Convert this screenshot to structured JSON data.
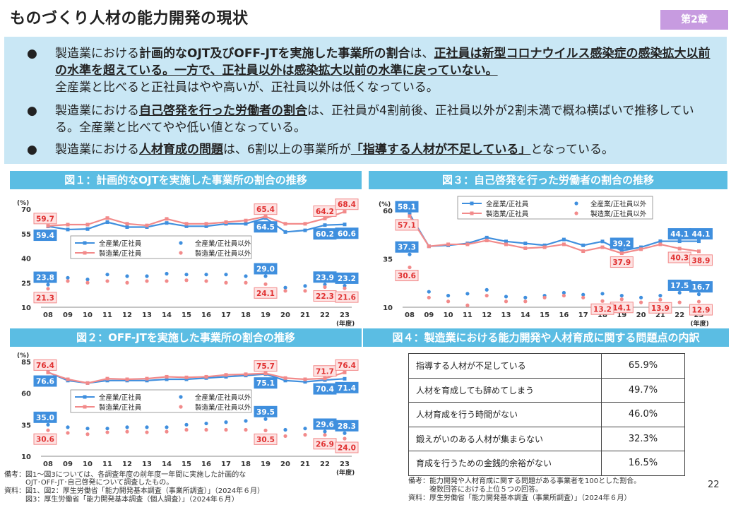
{
  "header": {
    "title": "ものづくり人材の能力開発の現状",
    "chapter": "第2章"
  },
  "summary": {
    "b1": {
      "p1": "製造業における",
      "p2": "計画的なOJT及びOFF-JTを実施した事業所の割合",
      "p3": "は、",
      "p4": "正社員は新型コロナウイルス感染症の感染拡大以前の水準を超えている。一方で、正社員以外は感染拡大以前の水準に戻っていない。",
      "p5": "全産業と比べると正社員はやや高いが、正社員以外は低くなっている。"
    },
    "b2": {
      "p1": "製造業における",
      "p2": "自己啓発を行った労働者の割合",
      "p3": "は、正社員が4割前後、正社員以外が2割未満で概ね横ばいで推移している。全産業と比べてやや低い値となっている。"
    },
    "b3": {
      "p1": "製造業における",
      "p2": "人材育成の問題",
      "p3": "は、6割以上の事業所が",
      "p4": "「指導する人材が不足している」",
      "p5": "となっている。"
    },
    "bullet": "●"
  },
  "panels": {
    "fig1": "図１：計画的なOJTを実施した事業所の割合の推移",
    "fig2": "図２：OFF-JTを実施した事業所の割合の推移",
    "fig3": "図３：自己啓発を行った労働者の割合の推移",
    "fig4": "図４：製造業における能力開発や人材育成に関する問題点の内訳"
  },
  "legend": {
    "all_regular": "全産業/正社員",
    "all_nonregular": "全産業/正社員以外",
    "mfg_regular": "製造業/正社員",
    "mfg_nonregular": "製造業/正社員以外"
  },
  "colors": {
    "blue": "#3f8fde",
    "red": "#f28a8a",
    "panel": "#5bbde3",
    "summary_bg": "#c9e7f5",
    "chapter": "#c79be0"
  },
  "chart_data": [
    {
      "id": "fig1",
      "type": "line",
      "categories": [
        "08",
        "09",
        "10",
        "11",
        "12",
        "13",
        "14",
        "15",
        "16",
        "17",
        "18",
        "19",
        "20",
        "21",
        "22",
        "23"
      ],
      "yunit": "(%)",
      "xunit": "(年度)",
      "yticks": [
        10,
        25,
        40,
        55,
        70
      ],
      "ylim": [
        10,
        70
      ],
      "series": [
        {
          "name": "全産業/正社員",
          "values": [
            59.4,
            57.5,
            57.8,
            62,
            59,
            59,
            61.5,
            59.5,
            59.5,
            61,
            61,
            64.5,
            56,
            57,
            60.2,
            60.6
          ]
        },
        {
          "name": "製造業/正社員",
          "values": [
            59.7,
            60.5,
            60.5,
            64.5,
            61,
            60,
            64,
            61,
            61,
            62,
            63,
            65.4,
            61,
            61,
            64.2,
            68.4
          ]
        },
        {
          "name": "全産業/正社員以外",
          "values": [
            23.8,
            28,
            27,
            30,
            29,
            29,
            30.5,
            30,
            30,
            30,
            29,
            29.0,
            22,
            23,
            23.9,
            23.2
          ]
        },
        {
          "name": "製造業/正社員以外",
          "values": [
            21.3,
            26,
            25,
            26,
            25,
            26,
            26,
            26.5,
            26,
            25,
            25,
            24.1,
            20,
            20,
            22.3,
            21.6
          ]
        }
      ],
      "labels": [
        {
          "series": 0,
          "index": 0,
          "text": "59.4"
        },
        {
          "series": 1,
          "index": 0,
          "text": "59.7"
        },
        {
          "series": 2,
          "index": 0,
          "text": "23.8"
        },
        {
          "series": 3,
          "index": 0,
          "text": "21.3"
        },
        {
          "series": 1,
          "index": 11,
          "text": "65.4"
        },
        {
          "series": 0,
          "index": 11,
          "text": "64.5"
        },
        {
          "series": 2,
          "index": 11,
          "text": "29.0"
        },
        {
          "series": 3,
          "index": 11,
          "text": "24.1"
        },
        {
          "series": 1,
          "index": 14,
          "text": "64.2"
        },
        {
          "series": 0,
          "index": 14,
          "text": "60.2"
        },
        {
          "series": 2,
          "index": 14,
          "text": "23.9"
        },
        {
          "series": 3,
          "index": 14,
          "text": "22.3"
        },
        {
          "series": 1,
          "index": 15,
          "text": "68.4"
        },
        {
          "series": 0,
          "index": 15,
          "text": "60.6"
        },
        {
          "series": 2,
          "index": 15,
          "text": "23.2"
        },
        {
          "series": 3,
          "index": 15,
          "text": "21.6"
        }
      ]
    },
    {
      "id": "fig2",
      "type": "line",
      "categories": [
        "08",
        "09",
        "10",
        "11",
        "12",
        "13",
        "14",
        "15",
        "16",
        "17",
        "18",
        "19",
        "20",
        "21",
        "22",
        "23"
      ],
      "yunit": "(%)",
      "xunit": "(年度)",
      "yticks": [
        10,
        35,
        60,
        85
      ],
      "ylim": [
        10,
        85
      ],
      "series": [
        {
          "name": "全産業/正社員",
          "values": [
            76.6,
            70,
            68,
            70,
            70,
            70,
            71,
            71,
            72,
            73,
            74,
            75.1,
            70,
            69,
            70.4,
            71.4
          ]
        },
        {
          "name": "製造業/正社員",
          "values": [
            76.4,
            71,
            68,
            71.5,
            71,
            71.5,
            73,
            72.5,
            73,
            74.5,
            75,
            75.7,
            72,
            71,
            71.7,
            76.4
          ]
        },
        {
          "name": "全産業/正社員以外",
          "values": [
            35.0,
            33,
            32,
            32,
            33,
            33,
            33,
            35,
            36,
            37,
            38,
            39.5,
            31,
            32,
            29.6,
            28.3
          ]
        },
        {
          "name": "製造業/正社員以外",
          "values": [
            30.6,
            28.5,
            27.5,
            29,
            29.5,
            29,
            29.5,
            31,
            31,
            31,
            31,
            30.5,
            26,
            27,
            26.9,
            24.0
          ]
        }
      ],
      "labels": [
        {
          "series": 1,
          "index": 0,
          "text": "76.4"
        },
        {
          "series": 0,
          "index": 0,
          "text": "76.6"
        },
        {
          "series": 2,
          "index": 0,
          "text": "35.0"
        },
        {
          "series": 3,
          "index": 0,
          "text": "30.6"
        },
        {
          "series": 1,
          "index": 11,
          "text": "75.7"
        },
        {
          "series": 0,
          "index": 11,
          "text": "75.1"
        },
        {
          "series": 2,
          "index": 11,
          "text": "39.5"
        },
        {
          "series": 3,
          "index": 11,
          "text": "30.5"
        },
        {
          "series": 1,
          "index": 14,
          "text": "71.7"
        },
        {
          "series": 0,
          "index": 14,
          "text": "70.4"
        },
        {
          "series": 2,
          "index": 14,
          "text": "29.6"
        },
        {
          "series": 3,
          "index": 14,
          "text": "26.9"
        },
        {
          "series": 1,
          "index": 15,
          "text": "76.4"
        },
        {
          "series": 0,
          "index": 15,
          "text": "71.4"
        },
        {
          "series": 2,
          "index": 15,
          "text": "28.3"
        },
        {
          "series": 3,
          "index": 15,
          "text": "24.0"
        }
      ]
    },
    {
      "id": "fig3",
      "type": "line",
      "categories": [
        "08",
        "09",
        "10",
        "11",
        "12",
        "13",
        "14",
        "15",
        "16",
        "17",
        "18",
        "19",
        "20",
        "21",
        "22",
        "23"
      ],
      "yunit": "(%)",
      "xunit": "(年度)",
      "yticks": [
        10,
        35,
        60
      ],
      "ylim": [
        10,
        60
      ],
      "series": [
        {
          "name": "全産業/正社員",
          "values": [
            58.1,
            41.5,
            42,
            43,
            46,
            44,
            43,
            42,
            45,
            42,
            44,
            39.2,
            41,
            44.1,
            44.1,
            44.1
          ]
        },
        {
          "name": "製造業/正社員",
          "values": [
            57.1,
            41.5,
            42.5,
            42.5,
            44.5,
            42.5,
            40.5,
            41,
            42.5,
            39,
            41,
            37.9,
            40,
            42.5,
            40.3,
            38.9
          ]
        },
        {
          "name": "全産業/正社員以外",
          "values": [
            37.3,
            18,
            16,
            17,
            19,
            15.5,
            15,
            16,
            17.5,
            16.5,
            17,
            16,
            15,
            16,
            17.5,
            16.7
          ]
        },
        {
          "name": "製造業/正社員以外",
          "values": [
            30.6,
            15,
            13,
            11,
            16,
            13,
            13,
            15,
            16,
            15,
            13.2,
            14.1,
            12.5,
            13.9,
            12.5,
            12.9
          ]
        }
      ],
      "labels": [
        {
          "series": 0,
          "index": 0,
          "text": "58.1"
        },
        {
          "series": 1,
          "index": 0,
          "text": "57.1"
        },
        {
          "series": 2,
          "index": 0,
          "text": "37.3"
        },
        {
          "series": 3,
          "index": 0,
          "text": "30.6"
        },
        {
          "series": 0,
          "index": 11,
          "text": "39.2"
        },
        {
          "series": 1,
          "index": 11,
          "text": "37.9"
        },
        {
          "series": 3,
          "index": 11,
          "text": "14.1"
        },
        {
          "series": 3,
          "index": 10,
          "text": "13.2"
        },
        {
          "series": 3,
          "index": 13,
          "text": "13.9"
        },
        {
          "series": 0,
          "index": 14,
          "text": "44.1"
        },
        {
          "series": 1,
          "index": 14,
          "text": "40.3"
        },
        {
          "series": 2,
          "index": 14,
          "text": "17.5"
        },
        {
          "series": 0,
          "index": 15,
          "text": "44.1"
        },
        {
          "series": 1,
          "index": 15,
          "text": "38.9"
        },
        {
          "series": 2,
          "index": 15,
          "text": "16.7"
        },
        {
          "series": 3,
          "index": 15,
          "text": "12.9"
        }
      ]
    },
    {
      "id": "fig4",
      "type": "table",
      "rows": [
        {
          "label": "指導する人材が不足している",
          "value": "65.9%"
        },
        {
          "label": "人材を育成しても辞めてしまう",
          "value": "49.7%"
        },
        {
          "label": "人材育成を行う時間がない",
          "value": "46.0%"
        },
        {
          "label": "鍛えがいのある人材が集まらない",
          "value": "32.3%"
        },
        {
          "label": "育成を行うための金銭的余裕がない",
          "value": "16.5%"
        }
      ]
    }
  ],
  "notes": {
    "left1": "備考：図1～図3については、各調査年度の前年度一年間に実施した計画的な",
    "left2": "　　　OJT･OFF-JT･自己啓発について調査したもの。",
    "left3": "資料：図1、図2：厚生労働省「能力開発基本調査（事業所調査）」（2024年６月）",
    "left4": "　　　図3：厚生労働省「能力開発基本調査（個人調査）」（2024年６月）",
    "right1": "備考：能力開発や人材育成に関する問題がある事業者を100とした割合。",
    "right2": "　　　複数回答における上位５つの回答。",
    "right3": "資料：厚生労働省「能力開発基本調査（事業所調査）」（2024年６月）"
  },
  "page_number": "22"
}
